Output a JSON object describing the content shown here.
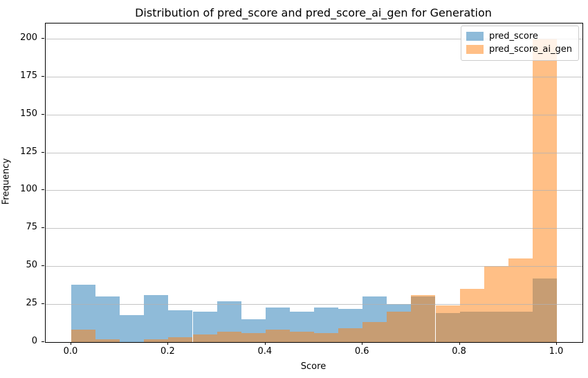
{
  "chart_data": {
    "type": "bar",
    "subtype": "histogram-overlaid",
    "title": "Distribution of pred_score and pred_score_ai_gen for Generation",
    "xlabel": "Score",
    "ylabel": "Frequency",
    "bin_edges": [
      0.0,
      0.05,
      0.1,
      0.15,
      0.2,
      0.25,
      0.3,
      0.35,
      0.4,
      0.45,
      0.5,
      0.55,
      0.6,
      0.65,
      0.7,
      0.75,
      0.8,
      0.85,
      0.9,
      0.95,
      1.0
    ],
    "series": [
      {
        "name": "pred_score",
        "base_color": "#1f77b4",
        "fill": "rgba(31,119,180,0.5)",
        "values": [
          38,
          30,
          18,
          31,
          21,
          20,
          27,
          15,
          23,
          20,
          23,
          22,
          30,
          25,
          30,
          19,
          20,
          20,
          20,
          42
        ]
      },
      {
        "name": "pred_score_ai_gen",
        "base_color": "#ff7f0e",
        "fill": "rgba(255,127,14,0.5)",
        "values": [
          8,
          2,
          0,
          2,
          3,
          5,
          7,
          6,
          8,
          7,
          6,
          9,
          13,
          20,
          31,
          24,
          35,
          50,
          55,
          200
        ]
      }
    ],
    "xticks": {
      "values": [
        0.0,
        0.2,
        0.4,
        0.6,
        0.8,
        1.0
      ],
      "labels": [
        "0.0",
        "0.2",
        "0.4",
        "0.6",
        "0.8",
        "1.0"
      ]
    },
    "yticks": {
      "values": [
        0,
        25,
        50,
        75,
        100,
        125,
        150,
        175,
        200
      ],
      "labels": [
        "0",
        "25",
        "50",
        "75",
        "100",
        "125",
        "150",
        "175",
        "200"
      ]
    },
    "xlim": [
      -0.0527,
      1.0527
    ],
    "ylim": [
      0,
      210
    ],
    "grid": "y",
    "grid_color": "#b2b2b2",
    "legend_position": "upper-right",
    "legend": [
      "pred_score",
      "pred_score_ai_gen"
    ]
  }
}
